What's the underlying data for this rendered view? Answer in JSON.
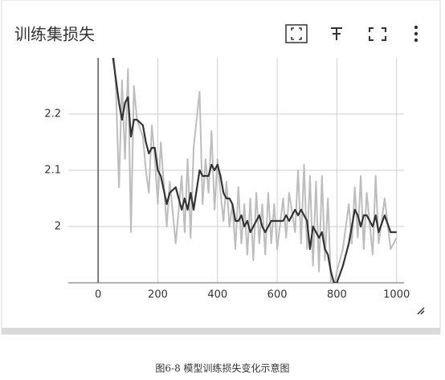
{
  "chart_data": {
    "type": "line",
    "title": "训练集损失",
    "caption": "图6-8 模型训练损失变化示意图",
    "x": [
      50,
      60,
      70,
      80,
      90,
      100,
      110,
      120,
      130,
      150,
      160,
      170,
      180,
      190,
      200,
      210,
      230,
      240,
      260,
      280,
      290,
      300,
      310,
      320,
      340,
      350,
      360,
      370,
      380,
      390,
      400,
      410,
      420,
      430,
      440,
      450,
      460,
      470,
      480,
      490,
      500,
      510,
      520,
      530,
      540,
      550,
      560,
      570,
      580,
      590,
      600,
      620,
      630,
      640,
      660,
      670,
      680,
      690,
      700,
      710,
      720,
      730,
      740,
      750,
      760,
      770,
      780,
      790,
      800,
      820,
      840,
      850,
      860,
      870,
      880,
      890,
      900,
      920,
      930,
      940,
      960,
      980,
      1000
    ],
    "series": [
      {
        "color": "#bdbdbd",
        "values": [
          2.33,
          2.24,
          2.07,
          2.26,
          2.12,
          2.28,
          1.99,
          2.25,
          2.19,
          2.16,
          2.1,
          2.06,
          2.18,
          2.12,
          2.04,
          2.15,
          2.0,
          2.08,
          1.97,
          2.09,
          1.99,
          2.12,
          1.98,
          2.14,
          2.24,
          2.04,
          2.12,
          2.06,
          2.17,
          2.03,
          2.12,
          2.06,
          2.01,
          2.08,
          2.0,
          2.04,
          1.96,
          2.07,
          1.97,
          2.04,
          1.95,
          2.05,
          1.94,
          2.06,
          1.97,
          2.04,
          1.95,
          2.06,
          1.97,
          2.04,
          1.96,
          2.05,
          1.98,
          2.06,
          1.99,
          2.1,
          1.97,
          2.11,
          1.96,
          2.09,
          1.93,
          2.08,
          1.92,
          2.09,
          1.94,
          2.05,
          1.9,
          1.89,
          1.92,
          1.96,
          2.04,
          1.97,
          2.07,
          1.98,
          2.09,
          1.96,
          2.06,
          1.95,
          2.09,
          1.97,
          2.05,
          1.96,
          1.98
        ]
      },
      {
        "color": "#333333",
        "values": [
          2.3,
          2.26,
          2.22,
          2.19,
          2.22,
          2.23,
          2.16,
          2.19,
          2.19,
          2.18,
          2.15,
          2.13,
          2.14,
          2.14,
          2.1,
          2.09,
          2.04,
          2.06,
          2.07,
          2.03,
          2.05,
          2.03,
          2.06,
          2.03,
          2.1,
          2.09,
          2.09,
          2.09,
          2.11,
          2.1,
          2.11,
          2.09,
          2.06,
          2.05,
          2.05,
          2.04,
          2.01,
          2.01,
          2.02,
          2.0,
          2.01,
          1.99,
          2.0,
          2.01,
          2.02,
          2.0,
          1.99,
          2.0,
          2.01,
          2.01,
          2.01,
          2.01,
          2.02,
          2.01,
          2.03,
          2.02,
          2.03,
          2.02,
          2.01,
          1.96,
          2.0,
          1.99,
          1.98,
          1.99,
          1.96,
          1.95,
          1.92,
          1.9,
          1.9,
          1.93,
          1.97,
          2.0,
          2.03,
          2.02,
          2.0,
          2.02,
          2.02,
          2.0,
          2.02,
          1.99,
          2.02,
          1.99,
          1.99
        ]
      }
    ],
    "xlim": [
      -100,
      1025
    ],
    "ylim": [
      1.9,
      2.3
    ],
    "xticks": [
      0,
      200,
      400,
      600,
      800,
      1000
    ],
    "yticks": [
      2,
      2.1,
      2.2
    ],
    "grid": true
  }
}
